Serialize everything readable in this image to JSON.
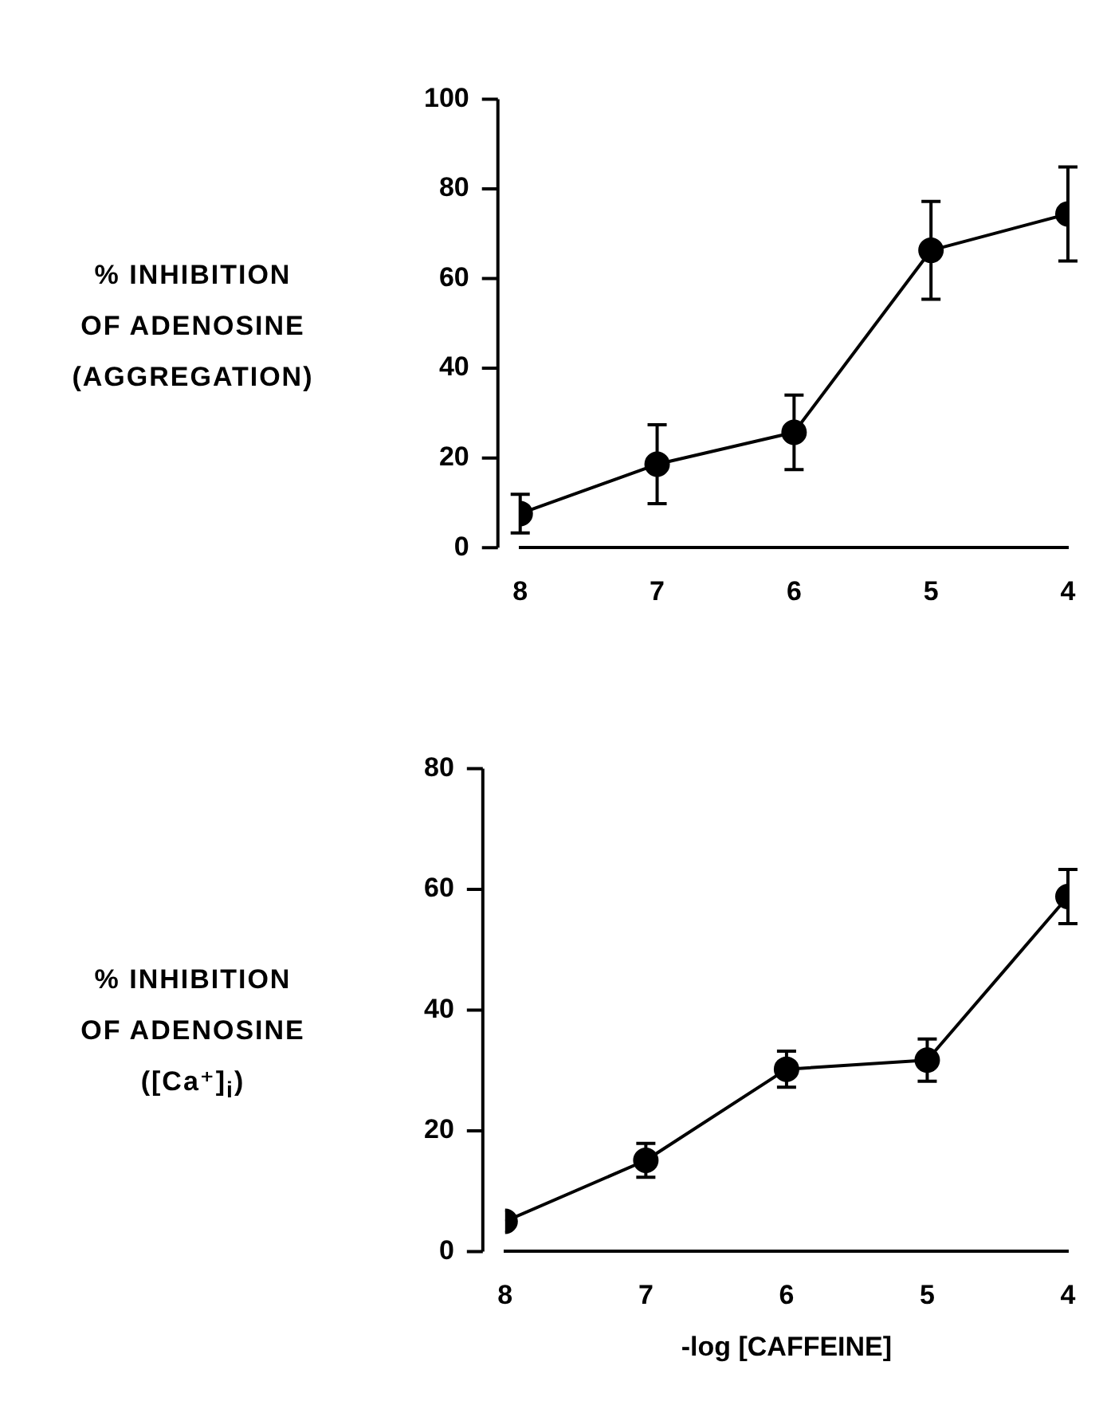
{
  "chart_data": [
    {
      "type": "line",
      "ylabel": "% INHIBITION\nOF ADENOSINE\n(AGGREGATION)",
      "x": [
        8,
        7,
        6,
        5,
        4
      ],
      "xlim": [
        8,
        4
      ],
      "xticks": [
        8,
        7,
        6,
        5,
        4
      ],
      "ylim": [
        0,
        100
      ],
      "yticks": [
        0,
        20,
        40,
        60,
        80,
        100
      ],
      "grid": false,
      "legend": false,
      "marker": "circle",
      "line_style": "solid",
      "series": [
        {
          "color": "#000000",
          "values": [
            7.6,
            18.6,
            25.7,
            66.3,
            74.4
          ],
          "errors": [
            4.3,
            8.8,
            8.3,
            10.9,
            10.5
          ]
        }
      ]
    },
    {
      "type": "line",
      "xlabel": "-log [CAFFEINE]",
      "ylabel": "% INHIBITION\nOF ADENOSINE\n([Ca⁺]$_{i}$)",
      "x": [
        8,
        7,
        6,
        5,
        4
      ],
      "xlim": [
        8,
        4
      ],
      "xticks": [
        8,
        7,
        6,
        5,
        4
      ],
      "ylim": [
        0,
        80
      ],
      "yticks": [
        0,
        20,
        40,
        60,
        80
      ],
      "grid": false,
      "legend": false,
      "marker": "circle",
      "line_style": "solid",
      "series": [
        {
          "color": "#000000",
          "values": [
            5.0,
            15.1,
            30.2,
            31.7,
            58.8
          ],
          "errors": [
            null,
            2.8,
            3.0,
            3.5,
            4.5
          ]
        }
      ]
    }
  ]
}
